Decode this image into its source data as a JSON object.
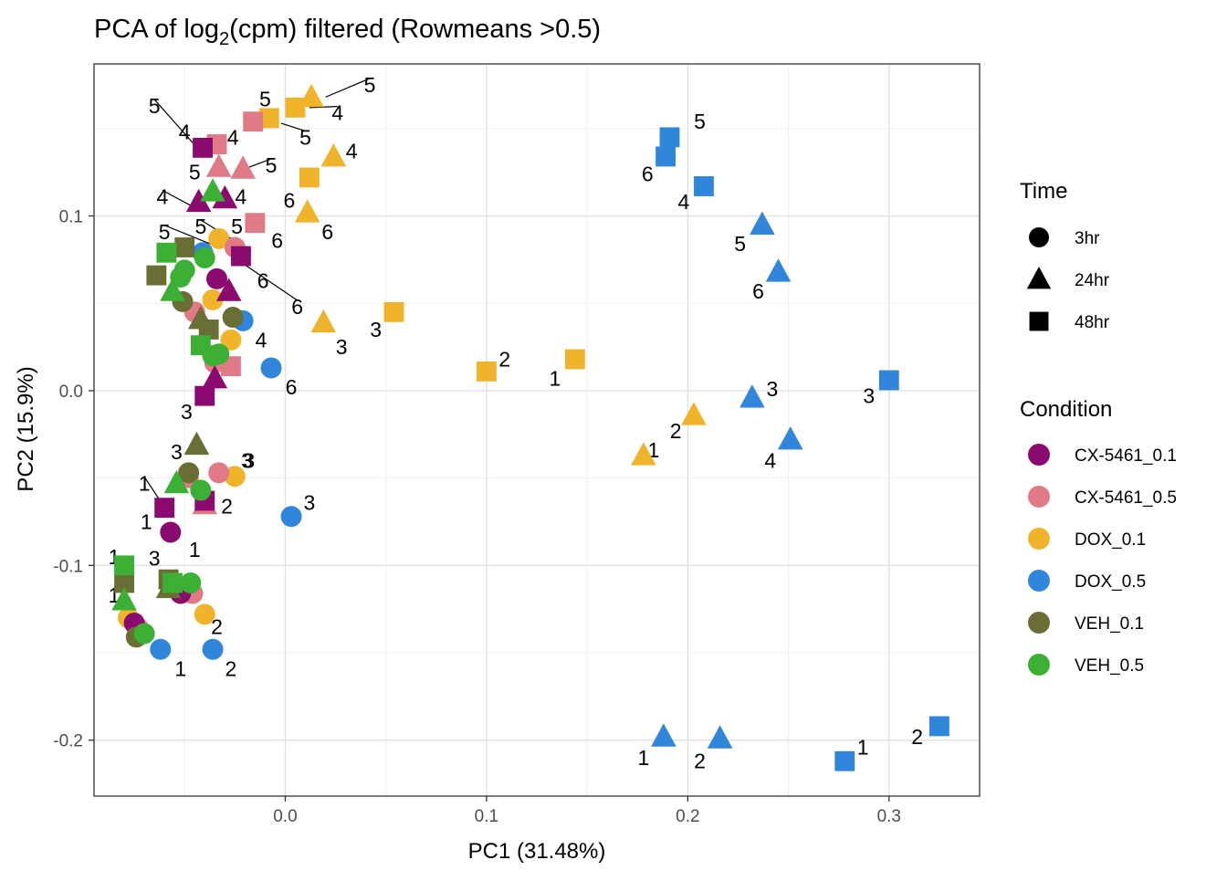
{
  "chart_data": {
    "type": "scatter",
    "title": {
      "main": "PCA of log",
      "sub": "2",
      "rest": "(cpm) filtered (Rowmeans >0.5)"
    },
    "xlabel": "PC1 (31.48%)",
    "ylabel": "PC2 (15.9%)",
    "xlim": [
      -0.095,
      0.345
    ],
    "ylim": [
      -0.232,
      0.187
    ],
    "xticks": [
      0.0,
      0.1,
      0.2,
      0.3
    ],
    "xtick_labels": [
      "0.0",
      "0.1",
      "0.2",
      "0.3"
    ],
    "yticks": [
      -0.2,
      -0.1,
      0.0,
      0.1
    ],
    "ytick_labels": [
      "-0.2",
      "-0.1",
      "0.0",
      "0.1"
    ],
    "grid": true,
    "legend": {
      "position": "right",
      "time_title": "Time",
      "time": [
        {
          "label": "3hr",
          "shape": "circle"
        },
        {
          "label": "24hr",
          "shape": "triangle"
        },
        {
          "label": "48hr",
          "shape": "square"
        }
      ],
      "condition_title": "Condition",
      "conditions": [
        {
          "label": "CX-5461_0.1",
          "color": "#8B0A6F"
        },
        {
          "label": "CX-5461_0.5",
          "color": "#E07A86"
        },
        {
          "label": "DOX_0.1",
          "color": "#F0B42C"
        },
        {
          "label": "DOX_0.5",
          "color": "#2F86DA"
        },
        {
          "label": "VEH_0.1",
          "color": "#6B6E34"
        },
        {
          "label": "VEH_0.5",
          "color": "#3CB035"
        }
      ]
    },
    "points": [
      {
        "c": "DOX_0.5",
        "t": "48hr",
        "x": 0.191,
        "y": 0.145
      },
      {
        "c": "DOX_0.5",
        "t": "48hr",
        "x": 0.189,
        "y": 0.134
      },
      {
        "c": "DOX_0.5",
        "t": "48hr",
        "x": 0.208,
        "y": 0.117
      },
      {
        "c": "DOX_0.5",
        "t": "24hr",
        "x": 0.237,
        "y": 0.095
      },
      {
        "c": "DOX_0.5",
        "t": "24hr",
        "x": 0.245,
        "y": 0.068
      },
      {
        "c": "DOX_0.5",
        "t": "48hr",
        "x": 0.3,
        "y": 0.006
      },
      {
        "c": "DOX_0.5",
        "t": "24hr",
        "x": 0.232,
        "y": -0.004
      },
      {
        "c": "DOX_0.5",
        "t": "24hr",
        "x": 0.251,
        "y": -0.028
      },
      {
        "c": "DOX_0.5",
        "t": "24hr",
        "x": 0.188,
        "y": -0.198
      },
      {
        "c": "DOX_0.5",
        "t": "24hr",
        "x": 0.216,
        "y": -0.199
      },
      {
        "c": "DOX_0.5",
        "t": "48hr",
        "x": 0.278,
        "y": -0.212
      },
      {
        "c": "DOX_0.5",
        "t": "48hr",
        "x": 0.325,
        "y": -0.192
      },
      {
        "c": "DOX_0.5",
        "t": "3hr",
        "x": -0.021,
        "y": 0.04
      },
      {
        "c": "DOX_0.5",
        "t": "3hr",
        "x": -0.007,
        "y": 0.013
      },
      {
        "c": "DOX_0.5",
        "t": "3hr",
        "x": 0.003,
        "y": -0.072
      },
      {
        "c": "DOX_0.5",
        "t": "3hr",
        "x": -0.062,
        "y": -0.148
      },
      {
        "c": "DOX_0.5",
        "t": "3hr",
        "x": -0.036,
        "y": -0.148
      },
      {
        "c": "DOX_0.5",
        "t": "3hr",
        "x": -0.041,
        "y": 0.079
      },
      {
        "c": "DOX_0.1",
        "t": "24hr",
        "x": 0.013,
        "y": 0.168
      },
      {
        "c": "DOX_0.1",
        "t": "48hr",
        "x": 0.005,
        "y": 0.162
      },
      {
        "c": "DOX_0.1",
        "t": "48hr",
        "x": -0.008,
        "y": 0.156
      },
      {
        "c": "DOX_0.1",
        "t": "24hr",
        "x": 0.024,
        "y": 0.134
      },
      {
        "c": "DOX_0.1",
        "t": "48hr",
        "x": 0.012,
        "y": 0.122
      },
      {
        "c": "DOX_0.1",
        "t": "24hr",
        "x": 0.011,
        "y": 0.102
      },
      {
        "c": "DOX_0.1",
        "t": "48hr",
        "x": 0.054,
        "y": 0.045
      },
      {
        "c": "DOX_0.1",
        "t": "24hr",
        "x": 0.019,
        "y": 0.039
      },
      {
        "c": "DOX_0.1",
        "t": "48hr",
        "x": 0.144,
        "y": 0.018
      },
      {
        "c": "DOX_0.1",
        "t": "48hr",
        "x": 0.1,
        "y": 0.011
      },
      {
        "c": "DOX_0.1",
        "t": "24hr",
        "x": 0.203,
        "y": -0.014
      },
      {
        "c": "DOX_0.1",
        "t": "24hr",
        "x": 0.178,
        "y": -0.037
      },
      {
        "c": "DOX_0.1",
        "t": "3hr",
        "x": -0.033,
        "y": 0.087
      },
      {
        "c": "DOX_0.1",
        "t": "3hr",
        "x": -0.036,
        "y": 0.052
      },
      {
        "c": "DOX_0.1",
        "t": "3hr",
        "x": -0.027,
        "y": 0.029
      },
      {
        "c": "DOX_0.1",
        "t": "3hr",
        "x": -0.025,
        "y": -0.049
      },
      {
        "c": "DOX_0.1",
        "t": "3hr",
        "x": -0.04,
        "y": -0.128
      },
      {
        "c": "DOX_0.1",
        "t": "3hr",
        "x": -0.078,
        "y": -0.13
      },
      {
        "c": "CX-5461_0.5",
        "t": "48hr",
        "x": -0.016,
        "y": 0.154
      },
      {
        "c": "CX-5461_0.5",
        "t": "48hr",
        "x": -0.034,
        "y": 0.141
      },
      {
        "c": "CX-5461_0.5",
        "t": "24hr",
        "x": -0.033,
        "y": 0.128
      },
      {
        "c": "CX-5461_0.5",
        "t": "24hr",
        "x": -0.021,
        "y": 0.127
      },
      {
        "c": "CX-5461_0.5",
        "t": "48hr",
        "x": -0.015,
        "y": 0.096
      },
      {
        "c": "CX-5461_0.5",
        "t": "3hr",
        "x": -0.025,
        "y": 0.082
      },
      {
        "c": "CX-5461_0.5",
        "t": "3hr",
        "x": -0.045,
        "y": 0.045
      },
      {
        "c": "CX-5461_0.5",
        "t": "48hr",
        "x": -0.027,
        "y": 0.014
      },
      {
        "c": "CX-5461_0.5",
        "t": "3hr",
        "x": -0.035,
        "y": 0.016
      },
      {
        "c": "CX-5461_0.5",
        "t": "3hr",
        "x": -0.033,
        "y": -0.047
      },
      {
        "c": "CX-5461_0.5",
        "t": "48hr",
        "x": -0.048,
        "y": -0.05
      },
      {
        "c": "CX-5461_0.5",
        "t": "24hr",
        "x": -0.04,
        "y": -0.065
      },
      {
        "c": "CX-5461_0.5",
        "t": "3hr",
        "x": -0.046,
        "y": -0.116
      },
      {
        "c": "CX-5461_0.5",
        "t": "3hr",
        "x": -0.073,
        "y": -0.136
      },
      {
        "c": "CX-5461_0.1",
        "t": "48hr",
        "x": -0.041,
        "y": 0.139
      },
      {
        "c": "CX-5461_0.1",
        "t": "24hr",
        "x": -0.043,
        "y": 0.108
      },
      {
        "c": "CX-5461_0.1",
        "t": "24hr",
        "x": -0.03,
        "y": 0.11
      },
      {
        "c": "CX-5461_0.1",
        "t": "48hr",
        "x": -0.022,
        "y": 0.077
      },
      {
        "c": "CX-5461_0.1",
        "t": "3hr",
        "x": -0.034,
        "y": 0.064
      },
      {
        "c": "CX-5461_0.1",
        "t": "24hr",
        "x": -0.028,
        "y": 0.057
      },
      {
        "c": "CX-5461_0.1",
        "t": "24hr",
        "x": -0.035,
        "y": 0.007
      },
      {
        "c": "CX-5461_0.1",
        "t": "48hr",
        "x": -0.04,
        "y": -0.003
      },
      {
        "c": "CX-5461_0.1",
        "t": "48hr",
        "x": -0.06,
        "y": -0.067
      },
      {
        "c": "CX-5461_0.1",
        "t": "3hr",
        "x": -0.057,
        "y": -0.081
      },
      {
        "c": "CX-5461_0.1",
        "t": "48hr",
        "x": -0.04,
        "y": -0.063
      },
      {
        "c": "CX-5461_0.1",
        "t": "3hr",
        "x": -0.052,
        "y": -0.116
      },
      {
        "c": "CX-5461_0.1",
        "t": "3hr",
        "x": -0.075,
        "y": -0.133
      },
      {
        "c": "VEH_0.1",
        "t": "48hr",
        "x": -0.05,
        "y": 0.082
      },
      {
        "c": "VEH_0.1",
        "t": "48hr",
        "x": -0.064,
        "y": 0.066
      },
      {
        "c": "VEH_0.1",
        "t": "3hr",
        "x": -0.051,
        "y": 0.051
      },
      {
        "c": "VEH_0.1",
        "t": "3hr",
        "x": -0.026,
        "y": 0.042
      },
      {
        "c": "VEH_0.1",
        "t": "24hr",
        "x": -0.042,
        "y": 0.041
      },
      {
        "c": "VEH_0.1",
        "t": "48hr",
        "x": -0.038,
        "y": 0.035
      },
      {
        "c": "VEH_0.1",
        "t": "24hr",
        "x": -0.044,
        "y": -0.031
      },
      {
        "c": "VEH_0.1",
        "t": "3hr",
        "x": -0.048,
        "y": -0.047
      },
      {
        "c": "VEH_0.1",
        "t": "48hr",
        "x": -0.058,
        "y": -0.108
      },
      {
        "c": "VEH_0.1",
        "t": "24hr",
        "x": -0.058,
        "y": -0.113
      },
      {
        "c": "VEH_0.1",
        "t": "48hr",
        "x": -0.08,
        "y": -0.11
      },
      {
        "c": "VEH_0.1",
        "t": "3hr",
        "x": -0.074,
        "y": -0.141
      },
      {
        "c": "VEH_0.5",
        "t": "24hr",
        "x": -0.036,
        "y": 0.114
      },
      {
        "c": "VEH_0.5",
        "t": "48hr",
        "x": -0.059,
        "y": 0.079
      },
      {
        "c": "VEH_0.5",
        "t": "3hr",
        "x": -0.04,
        "y": 0.076
      },
      {
        "c": "VEH_0.5",
        "t": "3hr",
        "x": -0.05,
        "y": 0.069
      },
      {
        "c": "VEH_0.5",
        "t": "24hr",
        "x": -0.056,
        "y": 0.057
      },
      {
        "c": "VEH_0.5",
        "t": "3hr",
        "x": -0.052,
        "y": 0.065
      },
      {
        "c": "VEH_0.5",
        "t": "48hr",
        "x": -0.042,
        "y": 0.026
      },
      {
        "c": "VEH_0.5",
        "t": "3hr",
        "x": -0.033,
        "y": 0.021
      },
      {
        "c": "VEH_0.5",
        "t": "3hr",
        "x": -0.036,
        "y": 0.02
      },
      {
        "c": "VEH_0.5",
        "t": "24hr",
        "x": -0.054,
        "y": -0.053
      },
      {
        "c": "VEH_0.5",
        "t": "3hr",
        "x": -0.042,
        "y": -0.057
      },
      {
        "c": "VEH_0.5",
        "t": "48hr",
        "x": -0.056,
        "y": -0.11
      },
      {
        "c": "VEH_0.5",
        "t": "3hr",
        "x": -0.047,
        "y": -0.11
      },
      {
        "c": "VEH_0.5",
        "t": "48hr",
        "x": -0.08,
        "y": -0.1
      },
      {
        "c": "VEH_0.5",
        "t": "24hr",
        "x": -0.08,
        "y": -0.12
      },
      {
        "c": "VEH_0.5",
        "t": "3hr",
        "x": -0.07,
        "y": -0.139
      }
    ],
    "labels": [
      {
        "text": "5",
        "x": 0.206,
        "y": 0.154
      },
      {
        "text": "6",
        "x": 0.18,
        "y": 0.124
      },
      {
        "text": "4",
        "x": 0.198,
        "y": 0.108
      },
      {
        "text": "5",
        "x": 0.226,
        "y": 0.084
      },
      {
        "text": "6",
        "x": 0.235,
        "y": 0.057
      },
      {
        "text": "3",
        "x": 0.29,
        "y": -0.003
      },
      {
        "text": "3",
        "x": 0.242,
        "y": 0.001
      },
      {
        "text": "4",
        "x": 0.241,
        "y": -0.04
      },
      {
        "text": "1",
        "x": 0.178,
        "y": -0.21
      },
      {
        "text": "2",
        "x": 0.206,
        "y": -0.212
      },
      {
        "text": "1",
        "x": 0.287,
        "y": -0.204
      },
      {
        "text": "2",
        "x": 0.314,
        "y": -0.198
      },
      {
        "text": "4",
        "x": -0.012,
        "y": 0.029
      },
      {
        "text": "6",
        "x": 0.003,
        "y": 0.002
      },
      {
        "text": "3",
        "x": 0.012,
        "y": -0.064
      },
      {
        "text": "1",
        "x": -0.052,
        "y": -0.159
      },
      {
        "text": "2",
        "x": -0.027,
        "y": -0.159
      },
      {
        "text": "5",
        "x": 0.042,
        "y": 0.175,
        "lx": 0.02,
        "ly": 0.168
      },
      {
        "text": "4",
        "x": 0.026,
        "y": 0.159,
        "lx": 0.012,
        "ly": 0.162
      },
      {
        "text": "5",
        "x": -0.01,
        "y": 0.167
      },
      {
        "text": "5",
        "x": 0.01,
        "y": 0.145,
        "lx": -0.002,
        "ly": 0.153
      },
      {
        "text": "4",
        "x": 0.033,
        "y": 0.137
      },
      {
        "text": "6",
        "x": 0.002,
        "y": 0.109
      },
      {
        "text": "6",
        "x": 0.021,
        "y": 0.091
      },
      {
        "text": "3",
        "x": 0.045,
        "y": 0.035
      },
      {
        "text": "3",
        "x": 0.028,
        "y": 0.025
      },
      {
        "text": "1",
        "x": 0.134,
        "y": 0.007
      },
      {
        "text": "2",
        "x": 0.109,
        "y": 0.018
      },
      {
        "text": "2",
        "x": 0.194,
        "y": -0.023
      },
      {
        "text": "1",
        "x": 0.183,
        "y": -0.034
      },
      {
        "text": "3",
        "x": -0.019,
        "y": -0.04
      },
      {
        "text": "2",
        "x": -0.034,
        "y": -0.135
      },
      {
        "text": "4",
        "x": -0.026,
        "y": 0.145
      },
      {
        "text": "5",
        "x": -0.007,
        "y": 0.129,
        "lx": -0.02,
        "ly": 0.127
      },
      {
        "text": "5",
        "x": -0.024,
        "y": 0.094
      },
      {
        "text": "6",
        "x": -0.004,
        "y": 0.086
      },
      {
        "text": "2",
        "x": -0.029,
        "y": -0.066
      },
      {
        "text": "5",
        "x": -0.065,
        "y": 0.163,
        "lx": -0.043,
        "ly": 0.138
      },
      {
        "text": "4",
        "x": -0.05,
        "y": 0.148
      },
      {
        "text": "5",
        "x": -0.045,
        "y": 0.125
      },
      {
        "text": "4",
        "x": -0.061,
        "y": 0.111,
        "lx": -0.047,
        "ly": 0.106
      },
      {
        "text": "4",
        "x": -0.022,
        "y": 0.111
      },
      {
        "text": "5",
        "x": -0.042,
        "y": 0.094,
        "lx": -0.017,
        "ly": 0.08
      },
      {
        "text": "6",
        "x": -0.011,
        "y": 0.063
      },
      {
        "text": "5",
        "x": -0.06,
        "y": 0.091,
        "lx": -0.033,
        "ly": 0.082
      },
      {
        "text": "6",
        "x": 0.006,
        "y": 0.048,
        "lx": -0.02,
        "ly": 0.072
      },
      {
        "text": "3",
        "x": -0.049,
        "y": -0.012
      },
      {
        "text": "1",
        "x": -0.07,
        "y": -0.053,
        "lx": -0.061,
        "ly": -0.065
      },
      {
        "text": "1",
        "x": -0.069,
        "y": -0.075
      },
      {
        "text": "1",
        "x": -0.045,
        "y": -0.091
      },
      {
        "text": "3",
        "x": -0.054,
        "y": -0.035
      },
      {
        "text": "3",
        "x": -0.018,
        "y": -0.04
      },
      {
        "text": "1",
        "x": -0.085,
        "y": -0.095
      },
      {
        "text": "3",
        "x": -0.065,
        "y": -0.096
      },
      {
        "text": "1",
        "x": -0.085,
        "y": -0.117
      }
    ]
  }
}
